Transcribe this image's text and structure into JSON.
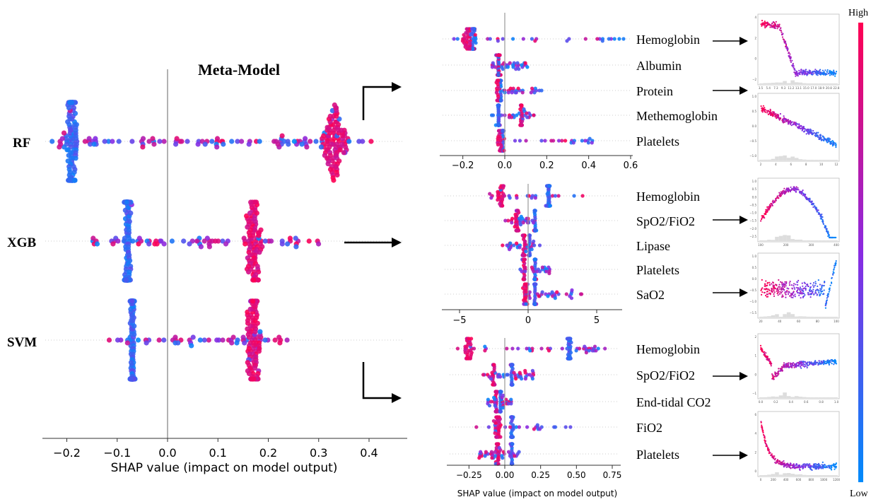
{
  "colors": {
    "high": "#ff0052",
    "mid": "#8a2be2",
    "low": "#008bfb",
    "axis": "#333333",
    "zero": "#999999"
  },
  "colorbar": {
    "high_label": "High",
    "low_label": "Low"
  },
  "chart_data": [
    {
      "id": "meta",
      "type": "scatter",
      "subtype": "shap-beeswarm",
      "title": "Meta-Model",
      "xlabel": "SHAP value (impact on model output)",
      "xlim": [
        -0.25,
        0.45
      ],
      "xticks": [
        "−0.2",
        "−0.1",
        "0.0",
        "0.1",
        "0.2",
        "0.3",
        "0.4"
      ],
      "xtick_values": [
        -0.2,
        -0.1,
        0.0,
        0.1,
        0.2,
        0.3,
        0.4
      ],
      "features": [
        {
          "name": "RF",
          "low_center": -0.19,
          "spread_min": -0.23,
          "spread_max": 0.43,
          "high_center": 0.33
        },
        {
          "name": "XGB",
          "low_center": -0.08,
          "spread_min": -0.15,
          "spread_max": 0.3,
          "high_center": 0.17
        },
        {
          "name": "SVM",
          "low_center": -0.07,
          "spread_min": -0.12,
          "spread_max": 0.24,
          "high_center": 0.17
        }
      ]
    },
    {
      "id": "rf",
      "type": "scatter",
      "subtype": "shap-beeswarm",
      "xlim": [
        -0.32,
        0.6
      ],
      "xticks": [
        "−0.2",
        "0.0",
        "0.2",
        "0.4",
        "0.6"
      ],
      "xtick_values": [
        -0.2,
        0.0,
        0.2,
        0.4,
        0.6
      ],
      "features": [
        {
          "name": "Hemoglobin",
          "low_center": -0.15,
          "spread_min": -0.3,
          "spread_max": 0.59,
          "high_center": -0.17
        },
        {
          "name": "Albumin",
          "low_center": -0.03,
          "spread_min": -0.06,
          "spread_max": 0.12,
          "high_center": -0.03
        },
        {
          "name": "Protein",
          "low_center": -0.02,
          "spread_min": -0.05,
          "spread_max": 0.18,
          "high_center": -0.03
        },
        {
          "name": "Methemoglobin",
          "low_center": -0.03,
          "spread_min": -0.07,
          "spread_max": 0.14,
          "high_center": 0.08
        },
        {
          "name": "Platelets",
          "low_center": -0.01,
          "spread_min": -0.04,
          "spread_max": 0.42,
          "high_center": -0.02
        }
      ]
    },
    {
      "id": "xgb",
      "type": "scatter",
      "subtype": "shap-beeswarm",
      "xlim": [
        -6.5,
        7
      ],
      "xticks": [
        "−5",
        "0",
        "5"
      ],
      "xtick_values": [
        -5,
        0,
        5
      ],
      "features": [
        {
          "name": "Hemoglobin",
          "low_center": 1.5,
          "spread_min": -3,
          "spread_max": 5.5,
          "high_center": -2.0
        },
        {
          "name": "SpO2/FiO2",
          "low_center": 0.5,
          "spread_min": -1.7,
          "spread_max": 1.0,
          "high_center": -0.8
        },
        {
          "name": "Lipase",
          "low_center": 0.1,
          "spread_min": -2.0,
          "spread_max": 1.0,
          "high_center": -0.3
        },
        {
          "name": "Platelets",
          "low_center": 0.5,
          "spread_min": -0.7,
          "spread_max": 1.6,
          "high_center": -0.3
        },
        {
          "name": "SaO2",
          "low_center": 0.5,
          "spread_min": -0.5,
          "spread_max": 4.0,
          "high_center": -0.2
        }
      ]
    },
    {
      "id": "svm",
      "type": "scatter",
      "subtype": "shap-beeswarm",
      "xlabel": "SHAP value (impact on model output)",
      "xlim": [
        -0.38,
        0.78
      ],
      "xticks": [
        "−0.25",
        "0.00",
        "0.25",
        "0.50",
        "0.75"
      ],
      "xtick_values": [
        -0.25,
        0.0,
        0.25,
        0.5,
        0.75
      ],
      "features": [
        {
          "name": "Hemoglobin",
          "low_center": 0.45,
          "spread_min": -0.35,
          "spread_max": 0.7,
          "high_center": -0.25
        },
        {
          "name": "SpO2/FiO2",
          "low_center": 0.05,
          "spread_min": -0.18,
          "spread_max": 0.2,
          "high_center": -0.08
        },
        {
          "name": "End-tidal CO2",
          "low_center": -0.03,
          "spread_min": -0.12,
          "spread_max": 0.05,
          "high_center": -0.06
        },
        {
          "name": "FiO2",
          "low_center": 0.05,
          "spread_min": -0.2,
          "spread_max": 0.46,
          "high_center": -0.05
        },
        {
          "name": "Platelets",
          "low_center": 0.05,
          "spread_min": -0.18,
          "spread_max": 0.12,
          "high_center": -0.05
        }
      ]
    }
  ],
  "dependence_plots": [
    {
      "id": "rf-hemoglobin",
      "xticks": [
        "3.5",
        "5.4",
        "7.3",
        "9.3",
        "11.2",
        "13.1",
        "15.0",
        "17.0",
        "18.9",
        "20.8",
        "22.8"
      ],
      "yticks": [
        "4",
        "2",
        "0",
        "−2"
      ]
    },
    {
      "id": "rf-protein",
      "xticks": [
        "2",
        "4",
        "6",
        "8",
        "10",
        "12"
      ],
      "yticks": [
        "1.0",
        "0.5",
        "0.0",
        "−0.5",
        "−1.0"
      ]
    },
    {
      "id": "xgb-spo2fio2",
      "xticks": [
        "100",
        "200",
        "300",
        "400"
      ],
      "yticks": [
        "1.0",
        "0.5",
        "0.0",
        "−0.5",
        "−1.0",
        "−1.5",
        "−2.0",
        "−2.5"
      ]
    },
    {
      "id": "xgb-sao2",
      "xticks": [
        "20",
        "40",
        "60",
        "80",
        "100"
      ],
      "yticks": [
        "1.0",
        "0.5",
        "0.0",
        "−0.5",
        "−1.0",
        "−1.5"
      ]
    },
    {
      "id": "svm-spo2fio2",
      "xticks": [
        "0.0",
        "0.2",
        "0.4",
        "0.6",
        "0.8",
        "1.0"
      ],
      "yticks": [
        "2",
        "1",
        "0",
        "−1"
      ]
    },
    {
      "id": "svm-platelets",
      "xticks": [
        "0",
        "200",
        "400",
        "600",
        "800",
        "1000",
        "1200"
      ],
      "yticks": [
        "6",
        "4",
        "2",
        "0"
      ]
    }
  ]
}
